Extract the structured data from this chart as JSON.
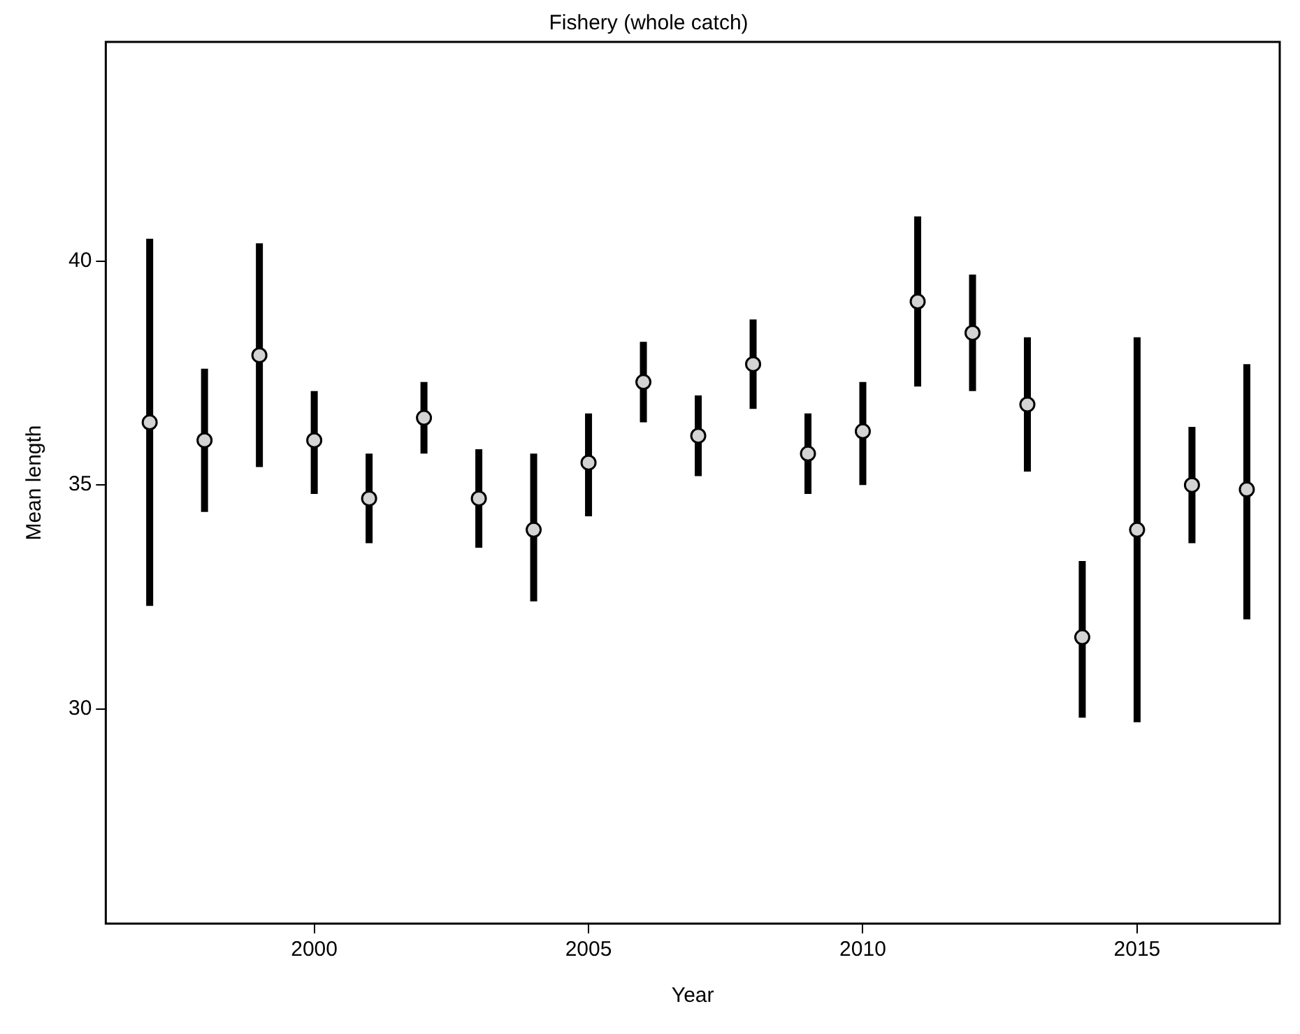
{
  "chart_data": {
    "type": "scatter",
    "title": "Fishery (whole catch)",
    "xlabel": "Year",
    "ylabel": "Mean length",
    "x": [
      1997,
      1998,
      1999,
      2000,
      2001,
      2002,
      2003,
      2004,
      2005,
      2006,
      2007,
      2008,
      2009,
      2010,
      2011,
      2012,
      2013,
      2014,
      2015,
      2016,
      2017
    ],
    "series": [
      {
        "color": "#d3d3d3",
        "values": [
          36.4,
          36.0,
          37.9,
          36.0,
          34.7,
          36.5,
          34.7,
          34.0,
          35.5,
          37.3,
          36.1,
          37.7,
          35.7,
          36.2,
          39.1,
          38.4,
          36.8,
          31.6,
          34.0,
          35.0,
          34.9
        ],
        "errors": [
          [
            32.3,
            40.5
          ],
          [
            34.4,
            37.6
          ],
          [
            35.4,
            40.4
          ],
          [
            34.8,
            37.1
          ],
          [
            33.7,
            35.7
          ],
          [
            35.7,
            37.3
          ],
          [
            33.6,
            35.8
          ],
          [
            32.4,
            35.7
          ],
          [
            34.3,
            36.6
          ],
          [
            36.4,
            38.2
          ],
          [
            35.2,
            37.0
          ],
          [
            36.7,
            38.7
          ],
          [
            34.8,
            36.6
          ],
          [
            35.0,
            37.3
          ],
          [
            37.2,
            41.0
          ],
          [
            37.1,
            39.7
          ],
          [
            35.3,
            38.3
          ],
          [
            29.8,
            33.3
          ],
          [
            29.7,
            38.3
          ],
          [
            33.7,
            36.3
          ],
          [
            32.0,
            37.7
          ]
        ]
      }
    ],
    "xlim": [
      1996.2,
      2017.6
    ],
    "xticks": [
      2000,
      2005,
      2010,
      2015
    ],
    "ylim": [
      25.2,
      44.9
    ],
    "yticks": [
      30,
      35,
      40
    ],
    "marker": "circle",
    "grid": false,
    "legend": false
  }
}
